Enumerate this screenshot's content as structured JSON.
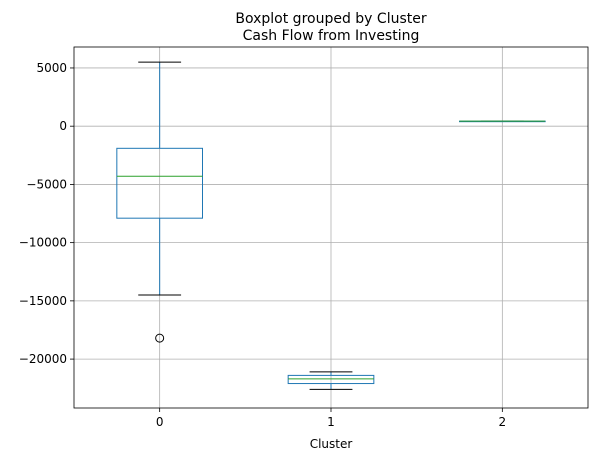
{
  "chart_data": {
    "type": "box",
    "suptitle": "Boxplot grouped by Cluster",
    "title": "Cash Flow from Investing",
    "xlabel": "Cluster",
    "ylabel": "",
    "categories": [
      "0",
      "1",
      "2"
    ],
    "ylim": [
      -24200,
      6800
    ],
    "yticks": [
      5000,
      0,
      -5000,
      -10000,
      -15000,
      -20000
    ],
    "ytick_labels": [
      "5000",
      "0",
      "−5000",
      "−10000",
      "−15000",
      "−20000"
    ],
    "grid": true,
    "colors": {
      "box": "#1f77b4",
      "median": "#2ca02c",
      "whisker_cap": "#000000",
      "grid": "#b0b0b0"
    },
    "boxes": [
      {
        "category": "0",
        "whisker_low": -14500,
        "q1": -7900,
        "median": -4300,
        "q3": -1900,
        "whisker_high": 5500,
        "outliers": [
          -18200
        ]
      },
      {
        "category": "1",
        "whisker_low": -22600,
        "q1": -22100,
        "median": -21700,
        "q3": -21400,
        "whisker_high": -21100,
        "outliers": []
      },
      {
        "category": "2",
        "whisker_low": 430,
        "q1": 430,
        "median": 430,
        "q3": 430,
        "whisker_high": 430,
        "outliers": []
      }
    ]
  }
}
